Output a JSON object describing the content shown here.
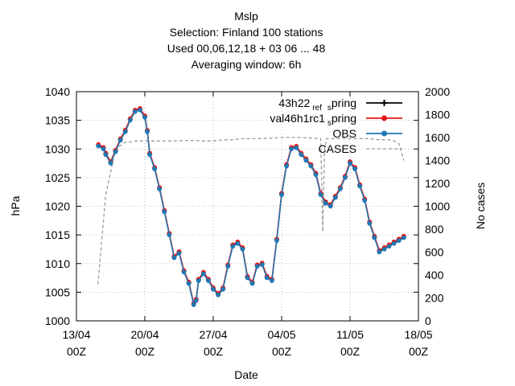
{
  "chart_data": {
    "type": "line",
    "title_lines": [
      "Mslp",
      "Selection: Finland     100 stations",
      "Used  00,06,12,18  + 03 06 ... 48",
      "Averaging window:  6h"
    ],
    "xlabel": "Date",
    "ylabel": "hPa",
    "y2label": "No cases",
    "x_ticks": [
      {
        "day": 0,
        "line1": "13/04",
        "line2": "00Z"
      },
      {
        "day": 7,
        "line1": "20/04",
        "line2": "00Z"
      },
      {
        "day": 14,
        "line1": "27/04",
        "line2": "00Z"
      },
      {
        "day": 21,
        "line1": "04/05",
        "line2": "00Z"
      },
      {
        "day": 28,
        "line1": "11/05",
        "line2": "00Z"
      },
      {
        "day": 35,
        "line1": "18/05",
        "line2": "00Z"
      }
    ],
    "xlim": [
      0,
      35
    ],
    "ylim": [
      1000,
      1040
    ],
    "y_ticks": [
      1000,
      1005,
      1010,
      1015,
      1020,
      1025,
      1030,
      1035,
      1040
    ],
    "y2lim": [
      0,
      2000
    ],
    "y2_ticks": [
      0,
      200,
      400,
      600,
      800,
      1000,
      1200,
      1400,
      1600,
      1800,
      2000
    ],
    "grid": true,
    "legend_position": "top-right",
    "series": [
      {
        "name": "43h22_ref_spring",
        "legend_main": "43h22",
        "legend_sub1": "ref",
        "legend_sub2": "s",
        "legend_rest": "pring",
        "color": "#000000",
        "marker": "plus",
        "offset": 0.15
      },
      {
        "name": "val46h1rc1_spring",
        "legend_main": "val46h1rc1",
        "legend_sub1": "",
        "legend_sub2": "s",
        "legend_rest": "pring",
        "color": "#e41a1c",
        "marker": "circle",
        "offset": 0.3
      },
      {
        "name": "OBS",
        "legend_main": "OBS",
        "color": "#1f78b4",
        "marker": "circle",
        "offset": 0
      },
      {
        "name": "CASES",
        "legend_main": "CASES",
        "color": "#999999",
        "dashed": true
      }
    ],
    "obs": {
      "x": [
        2.25,
        2.75,
        3.0,
        3.5,
        4.0,
        4.5,
        5.0,
        5.5,
        6.0,
        6.5,
        7.0,
        7.25,
        7.5,
        8.0,
        8.5,
        9.0,
        9.5,
        10.0,
        10.5,
        11.0,
        11.5,
        12.0,
        12.25,
        12.5,
        13.0,
        13.5,
        14.0,
        14.5,
        15.0,
        15.5,
        16.0,
        16.5,
        17.0,
        17.5,
        18.0,
        18.5,
        19.0,
        19.5,
        20.0,
        20.5,
        21.0,
        21.5,
        22.0,
        22.5,
        23.0,
        23.5,
        24.0,
        24.5,
        25.0,
        25.5,
        26.0,
        26.5,
        27.0,
        27.5,
        28.0,
        28.5,
        29.0,
        29.5,
        30.0,
        30.5,
        31.0,
        31.5,
        32.0,
        32.5,
        33.0,
        33.5
      ],
      "y": [
        1030.5,
        1030.0,
        1029.0,
        1027.5,
        1029.5,
        1031.5,
        1033.0,
        1035.0,
        1036.5,
        1036.8,
        1035.5,
        1033.0,
        1029.0,
        1026.5,
        1023.0,
        1019.0,
        1015.0,
        1011.0,
        1011.8,
        1008.5,
        1006.5,
        1002.8,
        1003.5,
        1007.0,
        1008.2,
        1007.0,
        1005.5,
        1004.5,
        1005.5,
        1009.5,
        1013.0,
        1013.5,
        1012.5,
        1007.5,
        1006.5,
        1009.5,
        1009.8,
        1007.5,
        1007.0,
        1014.0,
        1022.0,
        1027.0,
        1030.0,
        1030.2,
        1029.0,
        1028.0,
        1027.0,
        1025.5,
        1022.0,
        1020.5,
        1020.0,
        1021.5,
        1023.0,
        1025.0,
        1027.5,
        1026.5,
        1023.5,
        1021.0,
        1017.0,
        1014.5,
        1012.0,
        1012.5,
        1013.0,
        1013.5,
        1014.0,
        1014.5
      ]
    },
    "cases": {
      "x": [
        2.2,
        3.0,
        4.0,
        5.0,
        5.5,
        6.0,
        7.0,
        8.0,
        9.0,
        10.0,
        11.0,
        12.0,
        13.0,
        14.0,
        15.0,
        16.0,
        17.0,
        18.0,
        19.0,
        20.0,
        21.0,
        22.0,
        23.0,
        24.0,
        25.0,
        25.2,
        25.4,
        25.6,
        26.0,
        27.0,
        28.0,
        29.0,
        30.0,
        31.0,
        32.0,
        32.5,
        33.0,
        33.5
      ],
      "y": [
        320,
        1100,
        1500,
        1560,
        1560,
        1570,
        1570,
        1570,
        1570,
        1570,
        1575,
        1575,
        1570,
        1570,
        1580,
        1580,
        1590,
        1590,
        1590,
        1595,
        1600,
        1600,
        1600,
        1595,
        1590,
        780,
        1500,
        1590,
        1590,
        1590,
        1590,
        1590,
        1590,
        1580,
        1580,
        1570,
        1550,
        1400
      ]
    }
  }
}
